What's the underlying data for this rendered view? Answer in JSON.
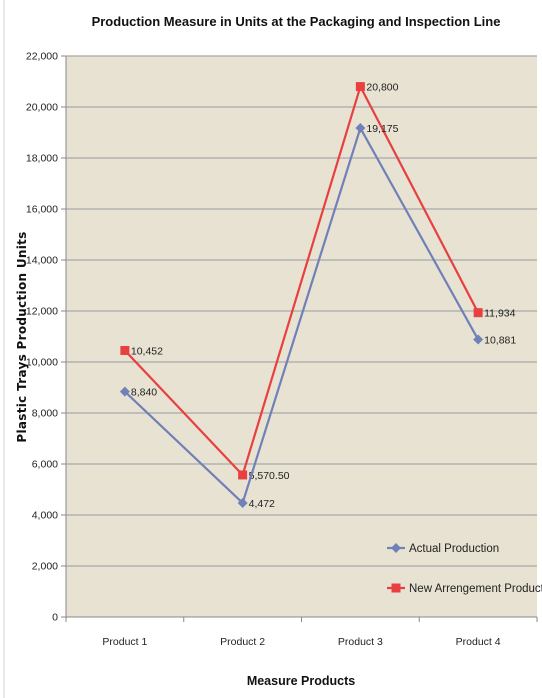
{
  "chart_data": {
    "type": "line",
    "title": "Production Measure in Units at the Packaging and Inspection Line",
    "xlabel": "Measure Products",
    "ylabel": "Plastic Trays Production Units",
    "categories": [
      "Product 1",
      "Product 2",
      "Product 3",
      "Product 4"
    ],
    "ylim": [
      0,
      22000
    ],
    "yticks": [
      0,
      2000,
      4000,
      6000,
      8000,
      10000,
      12000,
      14000,
      16000,
      18000,
      20000,
      22000
    ],
    "ytick_labels": [
      "0",
      "2,000",
      "4,000",
      "6,000",
      "8,000",
      "10,000",
      "12,000",
      "14,000",
      "16,000",
      "18,000",
      "20,000",
      "22,000"
    ],
    "grid": true,
    "legend_position": "bottom-right",
    "plot_background": "#e8e2d2",
    "series": [
      {
        "name": "Actual Production",
        "values": [
          8840,
          4472,
          19175,
          10881
        ],
        "labels": [
          "8,840",
          "4,472",
          "19,175",
          "10,881"
        ],
        "color": "#7080b8",
        "marker": "diamond"
      },
      {
        "name": "New Arrengement Production",
        "values": [
          10452,
          5570.5,
          20800,
          11934
        ],
        "labels": [
          "10,452",
          "5,570.50",
          "20,800",
          "11,934"
        ],
        "color": "#e84040",
        "marker": "square"
      }
    ]
  }
}
